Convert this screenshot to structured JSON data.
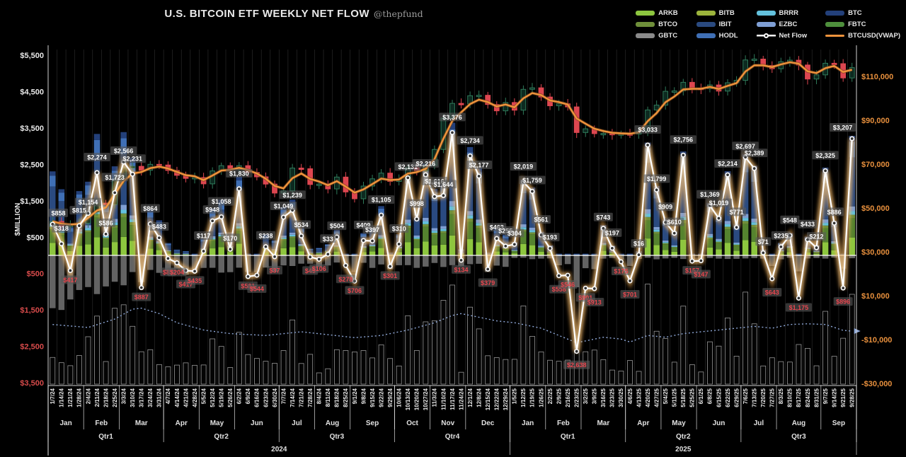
{
  "title": "U.S. BITCOIN ETF WEEKLY NET FLOW",
  "subtitle": "@thepfund",
  "axis_titles": {
    "left": "$MILLION"
  },
  "axes": {
    "left": {
      "values": [
        5500,
        4500,
        3500,
        2500,
        1500,
        500,
        -500,
        -1500,
        -2500,
        -3500
      ],
      "labels": [
        "$5,500",
        "$4,500",
        "$3,500",
        "$2,500",
        "$1,500",
        "$500",
        "$500",
        "$1,500",
        "$2,500",
        "$3,500"
      ],
      "pos_color": "#e9e9e9",
      "neg_color": "#d84b4b"
    },
    "right": {
      "values": [
        110000,
        90000,
        70000,
        50000,
        30000,
        10000,
        -10000,
        -30000
      ],
      "labels": [
        "$110,000",
        "$90,000",
        "$70,000",
        "$50,000",
        "$30,000",
        "$10,000",
        "-$10,000",
        "-$30,000"
      ],
      "color": "#e8903d"
    }
  },
  "legend_columns": [
    [
      {
        "label": "ARKB",
        "color": "#8dc63f",
        "kind": "swatch"
      },
      {
        "label": "BTCO",
        "color": "#6f8f3a",
        "kind": "swatch"
      },
      {
        "label": "GBTC",
        "color": "#8a8a8a",
        "kind": "swatch"
      }
    ],
    [
      {
        "label": "BITB",
        "color": "#9cb43c",
        "kind": "swatch"
      },
      {
        "label": "IBIT",
        "color": "#2a4a80",
        "kind": "swatch"
      },
      {
        "label": "HODL",
        "color": "#3f6fb5",
        "kind": "swatch"
      }
    ],
    [
      {
        "label": "BRRR",
        "color": "#63c1dd",
        "kind": "swatch"
      },
      {
        "label": "EZBC",
        "color": "#7f9fd4",
        "kind": "swatch"
      },
      {
        "label": "Net Flow",
        "color": "#ffffff",
        "kind": "netflow"
      }
    ],
    [
      {
        "label": "BTC",
        "color": "#23407a",
        "kind": "swatch"
      },
      {
        "label": "FBTC",
        "color": "#4e8f3c",
        "kind": "swatch"
      },
      {
        "label": "BTCUSD(VWAP)",
        "color": "#f0943c",
        "kind": "line"
      }
    ]
  ],
  "chart_data": {
    "type": "composite",
    "subtypes": [
      "stacked-bar",
      "line",
      "candlestick"
    ],
    "left_axis_range": [
      -3500,
      5500
    ],
    "right_axis_range": [
      -30000,
      110000
    ],
    "grid": true,
    "dates": [
      "1/7/24",
      "1/14/24",
      "1/21/24",
      "1/28/24",
      "2/4/24",
      "2/11/24",
      "2/18/24",
      "2/25/24",
      "3/3/24",
      "3/10/24",
      "3/17/24",
      "3/24/24",
      "3/31/24",
      "4/7/24",
      "4/14/24",
      "4/21/24",
      "4/28/24",
      "5/5/24",
      "5/12/24",
      "5/19/24",
      "5/26/24",
      "6/2/24",
      "6/9/24",
      "6/16/24",
      "6/23/24",
      "6/30/24",
      "7/7/24",
      "7/14/24",
      "7/21/24",
      "7/28/24",
      "8/4/24",
      "8/11/24",
      "8/18/24",
      "8/25/24",
      "9/1/24",
      "9/8/24",
      "9/15/24",
      "9/22/24",
      "9/29/24",
      "10/6/24",
      "10/13/24",
      "10/20/24",
      "10/27/24",
      "11/3/24",
      "11/10/24",
      "11/17/24",
      "11/24/24",
      "12/1/24",
      "12/8/24",
      "12/15/24",
      "12/22/24",
      "12/29/24",
      "1/5/25",
      "1/12/25",
      "1/19/25",
      "1/26/25",
      "2/2/25",
      "2/9/25",
      "2/16/25",
      "2/23/25",
      "3/2/25",
      "3/9/25",
      "3/16/25",
      "3/23/25",
      "3/30/25",
      "4/6/25",
      "4/13/25",
      "4/20/25",
      "4/27/25",
      "5/4/25",
      "5/11/25",
      "5/18/25",
      "5/25/25",
      "6/1/25",
      "6/8/25",
      "6/15/25",
      "6/22/25",
      "6/29/25",
      "7/6/25",
      "7/13/25",
      "7/20/25",
      "7/27/25",
      "8/3/25",
      "8/10/25",
      "8/17/25",
      "8/24/25",
      "8/31/25",
      "9/7/25",
      "9/14/25",
      "9/21/25",
      "9/28/25"
    ],
    "net_flow_musd": [
      858,
      318,
      -417,
      815,
      1154,
      2274,
      586,
      1723,
      2566,
      2231,
      -887,
      864,
      483,
      -85,
      -204,
      -417,
      -435,
      117,
      948,
      1058,
      170,
      1830,
      -581,
      -544,
      238,
      -37,
      1049,
      1239,
      534,
      -45,
      -106,
      33,
      504,
      -278,
      -706,
      409,
      397,
      1105,
      -301,
      310,
      2131,
      998,
      2216,
      1616,
      1644,
      3376,
      -134,
      2734,
      2177,
      -379,
      463,
      255,
      304,
      2019,
      1759,
      561,
      193,
      -558,
      -546,
      -2638,
      -901,
      -913,
      743,
      197,
      -175,
      -701,
      16,
      3033,
      1799,
      909,
      610,
      2756,
      -157,
      -147,
      1369,
      1019,
      2214,
      771,
      2697,
      2389,
      71,
      -643,
      235,
      548,
      -1175,
      433,
      212,
      2325,
      886,
      -896,
      3207
    ],
    "btcusd_weekly_close": [
      43900,
      41700,
      42100,
      43100,
      48200,
      52200,
      51600,
      62500,
      68300,
      69000,
      67200,
      69900,
      69600,
      67100,
      64900,
      63500,
      63900,
      61000,
      66900,
      69300,
      67700,
      69300,
      66200,
      64200,
      60900,
      56800,
      57800,
      68200,
      67900,
      60700,
      60900,
      58700,
      64100,
      57300,
      54200,
      60000,
      63300,
      65900,
      62100,
      63200,
      68400,
      67000,
      69400,
      76700,
      91000,
      97700,
      97500,
      101200,
      101400,
      97200,
      94300,
      98100,
      94600,
      104100,
      104800,
      100600,
      96600,
      97500,
      96100,
      84400,
      86100,
      83900,
      84000,
      83500,
      83800,
      83700,
      85100,
      94700,
      96900,
      103200,
      103400,
      107300,
      104600,
      104400,
      106100,
      103300,
      107100,
      108200,
      117500,
      117900,
      115000,
      113500,
      116700,
      117400,
      115200,
      108800,
      110700,
      116000,
      115800,
      109300,
      114000
    ],
    "dotted_guide_points": [
      [
        0,
        -1900
      ],
      [
        4,
        -1980
      ],
      [
        7,
        -1750
      ],
      [
        9,
        -1480
      ],
      [
        10,
        -1450
      ],
      [
        12,
        -1600
      ],
      [
        14,
        -1850
      ],
      [
        17,
        -2050
      ],
      [
        20,
        -2150
      ],
      [
        24,
        -2200
      ],
      [
        28,
        -2100
      ],
      [
        31,
        -2180
      ],
      [
        34,
        -2260
      ],
      [
        37,
        -2200
      ],
      [
        40,
        -2050
      ],
      [
        43,
        -1850
      ],
      [
        45,
        -1650
      ],
      [
        46,
        -1600
      ],
      [
        48,
        -1700
      ],
      [
        50,
        -1800
      ],
      [
        52,
        -1850
      ],
      [
        55,
        -2000
      ],
      [
        57,
        -2200
      ],
      [
        59,
        -2400
      ],
      [
        60,
        -2350
      ],
      [
        62,
        -2250
      ],
      [
        64,
        -2300
      ],
      [
        65,
        -2380
      ],
      [
        67,
        -2200
      ],
      [
        69,
        -2250
      ],
      [
        71,
        -2150
      ],
      [
        73,
        -2100
      ],
      [
        75,
        -2050
      ],
      [
        77,
        -2000
      ],
      [
        79,
        -1950
      ],
      [
        81,
        -2000
      ],
      [
        83,
        -1900
      ],
      [
        85,
        -1880
      ],
      [
        87,
        -1900
      ],
      [
        89,
        -2060
      ],
      [
        90,
        -2080
      ]
    ],
    "months": [
      {
        "label": "Jan",
        "n": 4
      },
      {
        "label": "Feb",
        "n": 4
      },
      {
        "label": "Mar",
        "n": 5
      },
      {
        "label": "Apr",
        "n": 4
      },
      {
        "label": "May",
        "n": 4
      },
      {
        "label": "Jun",
        "n": 5
      },
      {
        "label": "Jul",
        "n": 4
      },
      {
        "label": "Aug",
        "n": 4
      },
      {
        "label": "Sep",
        "n": 5
      },
      {
        "label": "Oct",
        "n": 4
      },
      {
        "label": "Nov",
        "n": 4
      },
      {
        "label": "Dec",
        "n": 5
      },
      {
        "label": "Jan",
        "n": 4
      },
      {
        "label": "Feb",
        "n": 4
      },
      {
        "label": "Mar",
        "n": 5
      },
      {
        "label": "Apr",
        "n": 4
      },
      {
        "label": "May",
        "n": 4
      },
      {
        "label": "Jun",
        "n": 5
      },
      {
        "label": "Jul",
        "n": 4
      },
      {
        "label": "Aug",
        "n": 5
      },
      {
        "label": "Sep",
        "n": 4
      }
    ],
    "quarters": [
      {
        "label": "Qtr1",
        "n": 13
      },
      {
        "label": "Qtr2",
        "n": 13
      },
      {
        "label": "Qtr3",
        "n": 13
      },
      {
        "label": "Qtr4",
        "n": 13
      },
      {
        "label": "Qtr1",
        "n": 13
      },
      {
        "label": "Qtr2",
        "n": 13
      },
      {
        "label": "Qtr3",
        "n": 13
      }
    ],
    "years": [
      {
        "label": "2024",
        "n": 52
      },
      {
        "label": "2025",
        "n": 39
      }
    ],
    "colors": {
      "net_flow_line": "#ffffff",
      "net_flow_glow": "#e89b3c",
      "vwap_line": "#f0943c",
      "candle_up": "#2f7a5a",
      "candle_down": "#dd4650",
      "label_pos": "#ffffff",
      "label_neg": "#e8474f",
      "label_box": "#5a5a5a",
      "dotted_guide": "#8fa8d8",
      "zero_line": "#ffffff",
      "stack_greens": [
        "#8dc63f",
        "#55832f",
        "#6f8f3a"
      ],
      "stack_cyans": [
        "#63c1dd",
        "#7f9fd4"
      ],
      "stack_blues": [
        "#2a4a80",
        "#3f6fb5",
        "#23407a"
      ],
      "stack_gray_negative": "#6e6e6e"
    }
  }
}
